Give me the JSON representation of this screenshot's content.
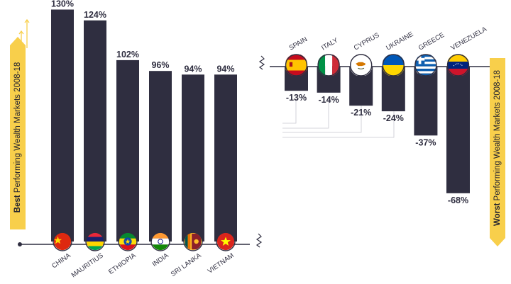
{
  "chart_data": [
    {
      "type": "bar",
      "categories": [
        "CHINA",
        "MAURITIUS",
        "ETHIOPIA",
        "INDIA",
        "SRI LANKA",
        "VIETNAM"
      ],
      "values": [
        130,
        124,
        102,
        96,
        94,
        94
      ],
      "value_labels": [
        "130%",
        "124%",
        "102%",
        "96%",
        "94%",
        "94%"
      ],
      "title": {
        "bold": "Best",
        "rest": " Performing Wealth Markets 2008-18"
      },
      "bar_color": "#2f2e40",
      "accent_color": "#f8cf4b",
      "icons": [
        "china-flag-icon",
        "mauritius-flag-icon",
        "ethiopia-flag-icon",
        "india-flag-icon",
        "sri-lanka-flag-icon",
        "vietnam-flag-icon"
      ]
    },
    {
      "type": "bar",
      "categories": [
        "SPAIN",
        "ITALY",
        "CYPRUS",
        "UKRAINE",
        "GREECE",
        "VENEZUELA"
      ],
      "values": [
        -13,
        -14,
        -21,
        -24,
        -37,
        -68
      ],
      "value_labels": [
        "-13%",
        "-14%",
        "-21%",
        "-24%",
        "-37%",
        "-68%"
      ],
      "title": {
        "bold": "Worst",
        "rest": " Performing Wealth Markets 2008-18"
      },
      "bar_color": "#2f2e40",
      "accent_color": "#f8cf4b",
      "icons": [
        "spain-flag-icon",
        "italy-flag-icon",
        "cyprus-flag-icon",
        "ukraine-flag-icon",
        "greece-flag-icon",
        "venezuela-flag-icon"
      ]
    }
  ]
}
